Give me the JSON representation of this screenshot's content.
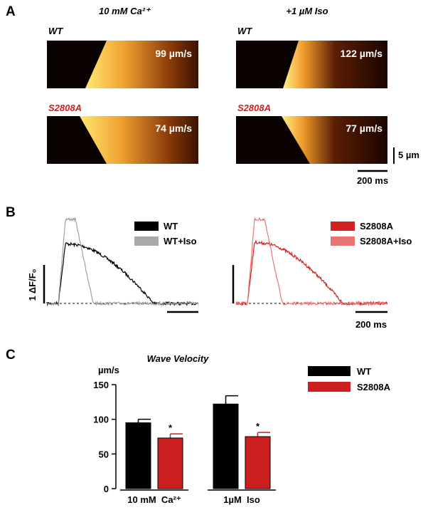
{
  "panel_a": {
    "label": "A",
    "columns": [
      "10 mM Ca²⁺",
      "+1 µM Iso"
    ],
    "rows": [
      "WT",
      "S2808A"
    ],
    "velocities": [
      [
        "99 µm/s",
        "122 µm/s"
      ],
      [
        "74 µm/s",
        "77 µm/s"
      ]
    ],
    "scale_y": "5 µm",
    "scale_x": "200 ms"
  },
  "panel_b": {
    "label": "B",
    "legend_left": [
      "WT",
      "WT+Iso"
    ],
    "legend_right": [
      "S2808A",
      "S2808A+Iso"
    ],
    "scale_y": "1 ΔF/F₀",
    "scale_x": "200 ms"
  },
  "chart_data": {
    "type": "bar",
    "panel_label": "C",
    "title": "Wave Velocity",
    "y_label": "µm/s",
    "categories": [
      "10 mM  Ca²⁺",
      "1µM  Iso"
    ],
    "series": [
      {
        "name": "WT",
        "color": "#000000",
        "values": [
          95,
          122
        ],
        "errors": [
          5,
          12
        ]
      },
      {
        "name": "S2808A",
        "color": "#cc1f1f",
        "values": [
          73,
          75
        ],
        "errors": [
          6,
          6
        ],
        "annotations": [
          "*",
          "*"
        ]
      }
    ],
    "ylim": [
      0,
      150
    ],
    "yticks": [
      0,
      50,
      100,
      150
    ]
  }
}
